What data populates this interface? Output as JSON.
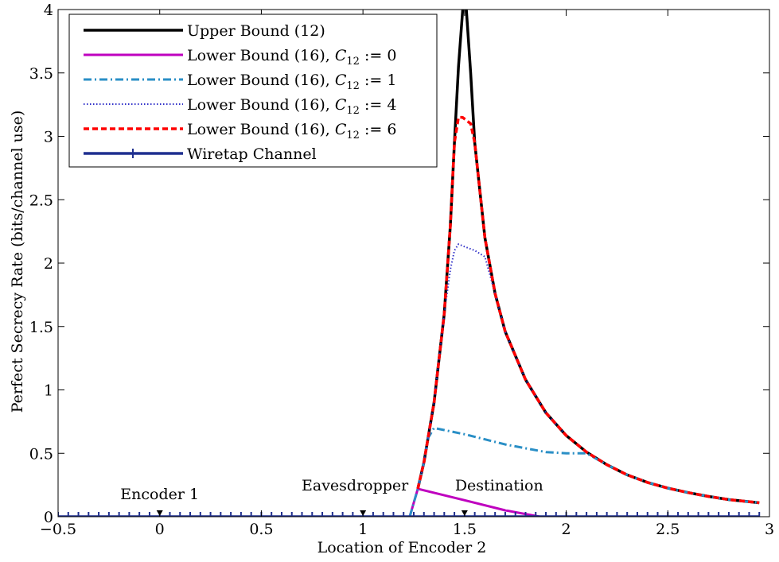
{
  "chart_data": {
    "type": "line",
    "xlabel": "Location of Encoder 2",
    "ylabel": "Perfect Secrecy Rate (bits/channel use)",
    "xlim": [
      -0.5,
      3
    ],
    "ylim": [
      0,
      4
    ],
    "x_ticks": [
      -0.5,
      0,
      0.5,
      1,
      1.5,
      2,
      2.5,
      3
    ],
    "x_tick_labels": [
      "−0.5",
      "0",
      "0.5",
      "1",
      "1.5",
      "2",
      "2.5",
      "3"
    ],
    "y_ticks": [
      0,
      0.5,
      1,
      1.5,
      2,
      2.5,
      3,
      3.5,
      4
    ],
    "y_tick_labels": [
      "0",
      "0.5",
      "1",
      "1.5",
      "2",
      "2.5",
      "3",
      "3.5",
      "4"
    ],
    "grid": false,
    "legend_position": "top-left",
    "series": [
      {
        "key": "upper",
        "label_prefix": "Upper Bound (12)",
        "label_math": "",
        "color": "#000000",
        "dash": "",
        "width": 3.5,
        "marker": "none",
        "x": [
          1.27,
          1.3,
          1.35,
          1.4,
          1.43,
          1.45,
          1.47,
          1.5,
          1.53,
          1.55,
          1.6,
          1.65,
          1.7,
          1.8,
          1.9,
          2.0,
          2.1,
          2.2,
          2.3,
          2.4,
          2.5,
          2.6,
          2.7,
          2.8,
          2.95
        ],
        "y": [
          0.22,
          0.43,
          0.9,
          1.6,
          2.3,
          2.95,
          3.55,
          4.2,
          3.5,
          2.95,
          2.2,
          1.76,
          1.46,
          1.08,
          0.82,
          0.64,
          0.51,
          0.41,
          0.33,
          0.27,
          0.225,
          0.19,
          0.16,
          0.135,
          0.11
        ]
      },
      {
        "key": "c0",
        "label_prefix": "Lower Bound (16), ",
        "label_math": "0",
        "color": "#bf00bf",
        "dash": "",
        "width": 3,
        "marker": "none",
        "x": [
          1.23,
          1.27,
          1.5,
          1.7,
          1.87
        ],
        "y": [
          0.0,
          0.22,
          0.13,
          0.05,
          0.0
        ]
      },
      {
        "key": "c1",
        "label_prefix": "Lower Bound (16), ",
        "label_math": "1",
        "color": "#2a8fc6",
        "dash": "10 4 2 4",
        "width": 3,
        "marker": "none",
        "x": [
          1.23,
          1.27,
          1.3,
          1.32,
          1.35,
          1.5,
          1.7,
          1.9,
          2.0,
          2.1,
          2.2,
          2.3,
          2.4,
          2.5,
          2.6,
          2.7,
          2.8,
          2.95
        ],
        "y": [
          0.0,
          0.22,
          0.43,
          0.62,
          0.7,
          0.65,
          0.57,
          0.51,
          0.5,
          0.5,
          0.41,
          0.33,
          0.27,
          0.225,
          0.19,
          0.16,
          0.135,
          0.11
        ]
      },
      {
        "key": "c4",
        "label_prefix": "Lower Bound (16), ",
        "label_math": "4",
        "color": "#3030c8",
        "dash": "1.5 2.5",
        "width": 2,
        "marker": "none",
        "x": [
          1.27,
          1.3,
          1.35,
          1.4,
          1.43,
          1.45,
          1.47,
          1.5,
          1.55,
          1.6,
          1.65,
          1.7,
          1.8,
          1.9,
          2.0
        ],
        "y": [
          0.22,
          0.43,
          0.9,
          1.6,
          1.95,
          2.1,
          2.15,
          2.13,
          2.1,
          2.05,
          1.76,
          1.46,
          1.08,
          0.82,
          0.64
        ]
      },
      {
        "key": "c6",
        "label_prefix": "Lower Bound (16), ",
        "label_math": "6",
        "color": "#ff0000",
        "dash": "7 4",
        "width": 3.5,
        "marker": "none",
        "x": [
          1.27,
          1.3,
          1.35,
          1.4,
          1.43,
          1.45,
          1.47,
          1.49,
          1.53,
          1.55,
          1.6,
          1.65,
          1.7,
          1.8,
          1.9,
          2.0,
          2.1,
          2.2,
          2.3,
          2.4,
          2.5,
          2.6,
          2.7,
          2.8,
          2.95
        ],
        "y": [
          0.22,
          0.43,
          0.9,
          1.6,
          2.3,
          2.95,
          3.15,
          3.15,
          3.1,
          2.95,
          2.2,
          1.76,
          1.46,
          1.08,
          0.82,
          0.64,
          0.51,
          0.41,
          0.33,
          0.27,
          0.225,
          0.19,
          0.16,
          0.135,
          0.11
        ]
      },
      {
        "key": "wiretap",
        "label_prefix": "Wiretap Channel",
        "label_math": "",
        "color": "#1f2f8f",
        "dash": "",
        "width": 3.5,
        "marker": "plus",
        "x": [
          -0.5,
          2.95
        ],
        "y": [
          0.0,
          0.0
        ],
        "marker_spacing": 0.05
      }
    ],
    "annotations": [
      {
        "text": "Encoder 1",
        "x": 0.0,
        "y": 0.0
      },
      {
        "text": "Eavesdropper",
        "x": 1.0,
        "y": 0.0
      },
      {
        "text": "Destination",
        "x": 1.5,
        "y": 0.0
      }
    ]
  }
}
